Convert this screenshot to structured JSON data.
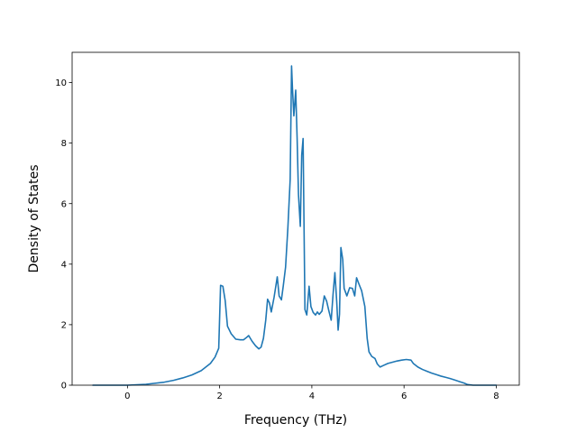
{
  "chart_data": {
    "type": "line",
    "title": "",
    "xlabel": "Frequency (THz)",
    "ylabel": "Density of States",
    "xlim": [
      -1.2,
      8.5
    ],
    "ylim": [
      0,
      11
    ],
    "xticks": [
      0,
      2,
      4,
      6,
      8
    ],
    "yticks": [
      0,
      2,
      4,
      6,
      8,
      10
    ],
    "grid": false,
    "legend": "none",
    "series": [
      {
        "color": "#1f77b4",
        "points": [
          [
            -0.75,
            0
          ],
          [
            -0.5,
            0
          ],
          [
            0,
            0
          ],
          [
            0.4,
            0.03
          ],
          [
            0.8,
            0.1
          ],
          [
            1.0,
            0.16
          ],
          [
            1.2,
            0.24
          ],
          [
            1.4,
            0.34
          ],
          [
            1.6,
            0.48
          ],
          [
            1.8,
            0.72
          ],
          [
            1.9,
            0.93
          ],
          [
            1.98,
            1.22
          ],
          [
            2.02,
            3.3
          ],
          [
            2.07,
            3.27
          ],
          [
            2.12,
            2.8
          ],
          [
            2.17,
            1.95
          ],
          [
            2.25,
            1.7
          ],
          [
            2.35,
            1.52
          ],
          [
            2.45,
            1.5
          ],
          [
            2.52,
            1.5
          ],
          [
            2.57,
            1.56
          ],
          [
            2.63,
            1.64
          ],
          [
            2.7,
            1.46
          ],
          [
            2.78,
            1.3
          ],
          [
            2.85,
            1.2
          ],
          [
            2.9,
            1.26
          ],
          [
            2.95,
            1.55
          ],
          [
            3.0,
            2.15
          ],
          [
            3.04,
            2.84
          ],
          [
            3.08,
            2.72
          ],
          [
            3.12,
            2.42
          ],
          [
            3.18,
            2.9
          ],
          [
            3.25,
            3.58
          ],
          [
            3.29,
            2.95
          ],
          [
            3.34,
            2.82
          ],
          [
            3.38,
            3.28
          ],
          [
            3.43,
            3.9
          ],
          [
            3.48,
            5.2
          ],
          [
            3.53,
            6.8
          ],
          [
            3.56,
            10.55
          ],
          [
            3.58,
            9.8
          ],
          [
            3.61,
            8.9
          ],
          [
            3.65,
            9.75
          ],
          [
            3.68,
            8.2
          ],
          [
            3.71,
            6.3
          ],
          [
            3.75,
            5.25
          ],
          [
            3.78,
            7.6
          ],
          [
            3.81,
            8.15
          ],
          [
            3.85,
            2.5
          ],
          [
            3.89,
            2.32
          ],
          [
            3.94,
            3.27
          ],
          [
            3.98,
            2.6
          ],
          [
            4.03,
            2.4
          ],
          [
            4.08,
            2.32
          ],
          [
            4.12,
            2.42
          ],
          [
            4.16,
            2.34
          ],
          [
            4.22,
            2.45
          ],
          [
            4.27,
            2.95
          ],
          [
            4.32,
            2.78
          ],
          [
            4.37,
            2.45
          ],
          [
            4.42,
            2.15
          ],
          [
            4.46,
            3.0
          ],
          [
            4.5,
            3.72
          ],
          [
            4.54,
            2.75
          ],
          [
            4.57,
            1.82
          ],
          [
            4.6,
            2.35
          ],
          [
            4.63,
            4.55
          ],
          [
            4.67,
            4.15
          ],
          [
            4.7,
            3.2
          ],
          [
            4.76,
            2.95
          ],
          [
            4.82,
            3.22
          ],
          [
            4.88,
            3.2
          ],
          [
            4.93,
            2.95
          ],
          [
            4.97,
            3.55
          ],
          [
            5.02,
            3.35
          ],
          [
            5.08,
            3.12
          ],
          [
            5.15,
            2.6
          ],
          [
            5.2,
            1.55
          ],
          [
            5.24,
            1.1
          ],
          [
            5.3,
            0.95
          ],
          [
            5.37,
            0.88
          ],
          [
            5.42,
            0.7
          ],
          [
            5.48,
            0.6
          ],
          [
            5.55,
            0.65
          ],
          [
            5.65,
            0.72
          ],
          [
            5.75,
            0.76
          ],
          [
            5.85,
            0.8
          ],
          [
            5.95,
            0.83
          ],
          [
            6.05,
            0.85
          ],
          [
            6.15,
            0.83
          ],
          [
            6.2,
            0.72
          ],
          [
            6.3,
            0.6
          ],
          [
            6.4,
            0.52
          ],
          [
            6.5,
            0.46
          ],
          [
            6.6,
            0.4
          ],
          [
            6.7,
            0.35
          ],
          [
            6.8,
            0.3
          ],
          [
            6.9,
            0.26
          ],
          [
            7.0,
            0.22
          ],
          [
            7.1,
            0.17
          ],
          [
            7.2,
            0.12
          ],
          [
            7.3,
            0.07
          ],
          [
            7.38,
            0.02
          ],
          [
            7.5,
            0
          ],
          [
            8.0,
            0
          ]
        ]
      }
    ]
  }
}
